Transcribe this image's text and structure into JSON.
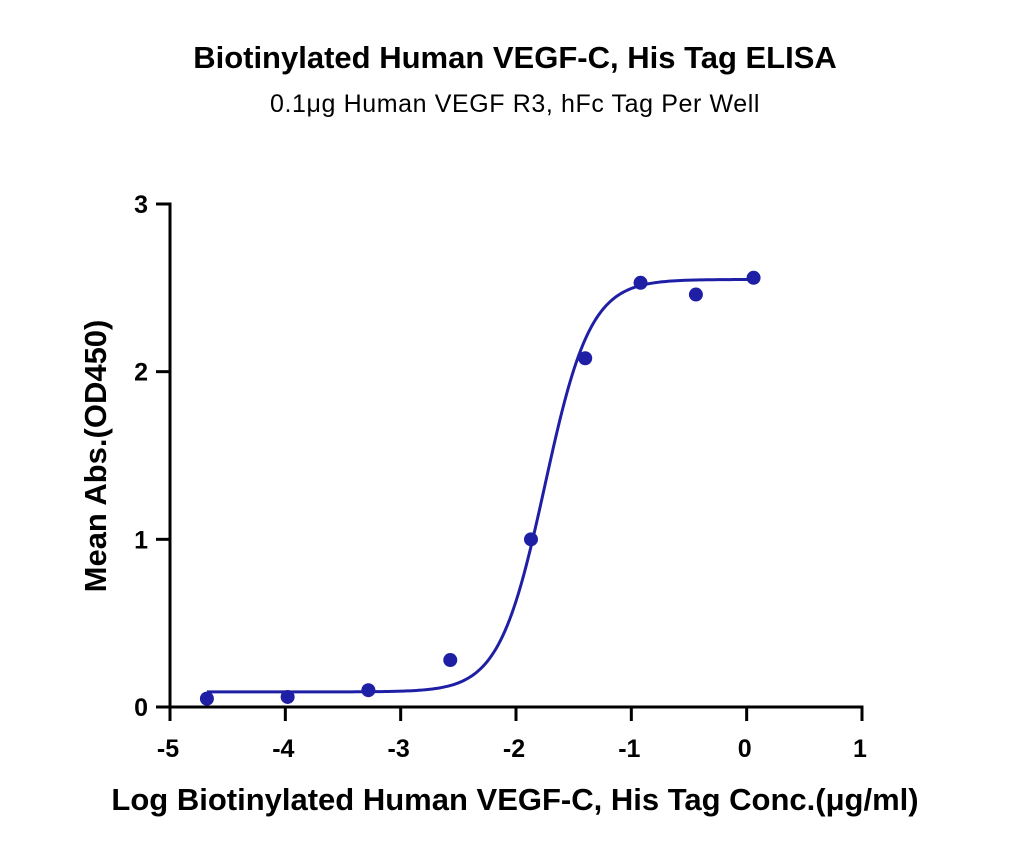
{
  "chart_data": {
    "type": "scatter",
    "title": "Biotinylated Human VEGF-C, His Tag ELISA",
    "subtitle": "0.1μg Human VEGF R3, hFc Tag Per Well",
    "xlabel": "Log Biotinylated Human VEGF-C, His Tag Conc.(μg/ml)",
    "ylabel": "Mean Abs.(OD450)",
    "xlim": [
      -5,
      1
    ],
    "ylim": [
      0,
      3
    ],
    "xticks": [
      -5,
      -4,
      -3,
      -2,
      -1,
      0,
      1
    ],
    "yticks": [
      0,
      1,
      2,
      3
    ],
    "grid": false,
    "legend": "none",
    "color": "#1f1fa6",
    "series": [
      {
        "x": [
          -4.68,
          -3.98,
          -3.28,
          -2.57,
          -1.87,
          -1.4,
          -0.92,
          -0.44,
          0.06
        ],
        "y": [
          0.05,
          0.06,
          0.1,
          0.28,
          1.0,
          2.08,
          2.53,
          2.46,
          2.56
        ]
      }
    ],
    "fit": {
      "type": "4PL",
      "bottom": 0.09,
      "top": 2.55,
      "logEC50": -1.75,
      "hillslope": 2.2,
      "x_range": [
        -4.68,
        0.06
      ]
    }
  }
}
